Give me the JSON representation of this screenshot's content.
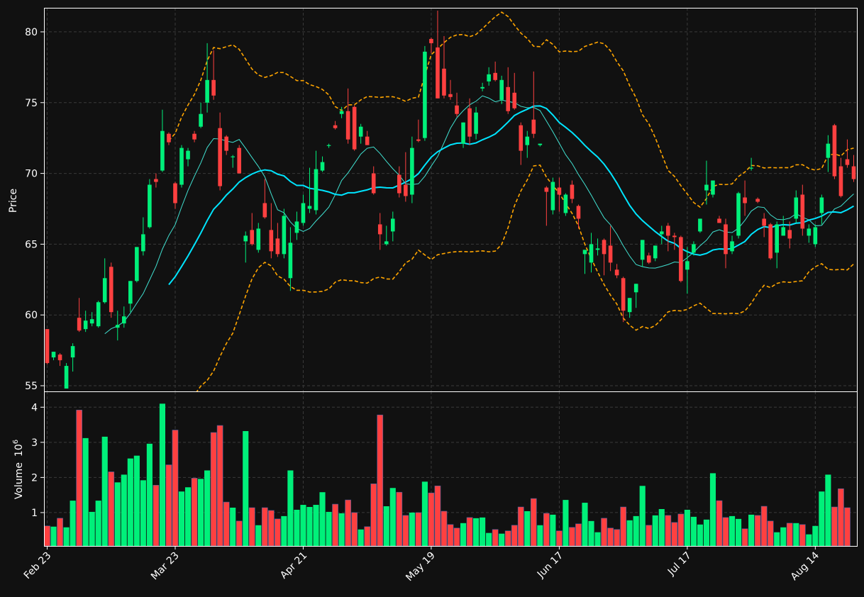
{
  "chart_data": {
    "type": "candlestick",
    "colors": {
      "background": "#111111",
      "grid": "#3a3a3a",
      "up": "#00f07a",
      "down": "#ff4040",
      "mav_short": "#40e0d0",
      "mav_long": "#00e5ff",
      "bands": "#ffa500",
      "frame": "#ffffff"
    },
    "price_panel": {
      "ylabel": "Price",
      "ylim": [
        54.6,
        81.7
      ],
      "yticks": [
        55,
        60,
        65,
        70,
        75,
        80
      ]
    },
    "volume_panel": {
      "ylabel": "Volume",
      "ylabel_exponent": "10",
      "ylabel_power": "6",
      "ylim": [
        0.05,
        4.45
      ],
      "yticks": [
        1,
        2,
        3,
        4
      ]
    },
    "x_ticks": [
      {
        "label": "Feb 23",
        "index": 0
      },
      {
        "label": "Mar 23",
        "index": 20
      },
      {
        "label": "Apr 21",
        "index": 40
      },
      {
        "label": "May 19",
        "index": 60
      },
      {
        "label": "Jun 17",
        "index": 80
      },
      {
        "label": "Jul 17",
        "index": 100
      },
      {
        "label": "Aug 14",
        "index": 120
      }
    ],
    "ohlc": [
      [
        59.0,
        59.0,
        56.5,
        56.6
      ],
      [
        57.0,
        57.4,
        56.8,
        57.4
      ],
      [
        57.2,
        57.3,
        56.4,
        56.8
      ],
      [
        54.8,
        56.6,
        54.8,
        56.4
      ],
      [
        57.0,
        58.0,
        56.0,
        57.8
      ],
      [
        59.8,
        61.2,
        58.8,
        58.9
      ],
      [
        59.0,
        60.3,
        58.8,
        59.6
      ],
      [
        59.4,
        60.2,
        59.2,
        59.7
      ],
      [
        59.2,
        61.0,
        59.1,
        60.9
      ],
      [
        60.9,
        64.0,
        60.8,
        62.6
      ],
      [
        63.4,
        63.7,
        59.8,
        60.2
      ],
      [
        59.1,
        60.3,
        58.2,
        59.3
      ],
      [
        59.4,
        60.6,
        59.1,
        59.9
      ],
      [
        60.8,
        62.4,
        60.2,
        62.4
      ],
      [
        62.4,
        64.8,
        62.3,
        64.8
      ],
      [
        64.5,
        66.9,
        64.2,
        65.7
      ],
      [
        66.2,
        69.6,
        66.1,
        69.2
      ],
      [
        69.6,
        70.0,
        69.0,
        69.4
      ],
      [
        70.2,
        74.5,
        70.1,
        73.0
      ],
      [
        72.8,
        72.9,
        72.0,
        72.2
      ],
      [
        69.3,
        69.4,
        67.5,
        67.9
      ],
      [
        69.2,
        72.0,
        69.0,
        71.8
      ],
      [
        71.0,
        71.8,
        70.5,
        71.6
      ],
      [
        72.8,
        73.0,
        72.2,
        72.4
      ],
      [
        73.3,
        75.0,
        73.2,
        74.2
      ],
      [
        75.0,
        79.2,
        74.3,
        76.6
      ],
      [
        76.6,
        78.7,
        75.2,
        75.5
      ],
      [
        73.2,
        74.3,
        68.8,
        69.1
      ],
      [
        72.6,
        72.7,
        71.3,
        71.6
      ],
      [
        71.2,
        71.3,
        70.4,
        71.2
      ],
      [
        71.8,
        72.0,
        70.0,
        70.0
      ],
      [
        65.2,
        65.9,
        63.7,
        65.6
      ],
      [
        66.0,
        67.2,
        64.9,
        65.0
      ],
      [
        64.6,
        66.5,
        64.4,
        66.1
      ],
      [
        67.9,
        69.6,
        66.8,
        66.9
      ],
      [
        66.0,
        67.9,
        64.0,
        64.5
      ],
      [
        65.4,
        66.5,
        64.1,
        64.3
      ],
      [
        64.3,
        67.5,
        64.0,
        67.0
      ],
      [
        62.6,
        66.2,
        61.7,
        65.1
      ],
      [
        65.8,
        67.3,
        65.3,
        66.6
      ],
      [
        66.5,
        68.5,
        66.3,
        67.9
      ],
      [
        67.5,
        70.4,
        67.2,
        67.7
      ],
      [
        67.4,
        71.6,
        67.1,
        70.3
      ],
      [
        70.2,
        71.2,
        70.1,
        70.8
      ],
      [
        72.0,
        72.1,
        71.8,
        72.0
      ],
      [
        73.4,
        73.7,
        73.1,
        73.2
      ],
      [
        74.2,
        74.7,
        73.9,
        74.4
      ],
      [
        74.4,
        76.0,
        72.1,
        72.4
      ],
      [
        74.7,
        74.8,
        71.6,
        71.7
      ],
      [
        72.6,
        73.5,
        72.1,
        73.3
      ],
      [
        72.6,
        73.0,
        72.0,
        72.0
      ],
      [
        70.0,
        70.5,
        68.5,
        68.6
      ],
      [
        66.4,
        67.2,
        64.6,
        65.7
      ],
      [
        65.0,
        66.3,
        64.9,
        65.2
      ],
      [
        65.9,
        67.3,
        65.2,
        66.8
      ],
      [
        69.9,
        70.5,
        68.3,
        68.6
      ],
      [
        69.2,
        71.5,
        68.0,
        68.4
      ],
      [
        68.5,
        72.6,
        67.9,
        71.8
      ],
      [
        72.4,
        73.8,
        72.2,
        72.3
      ],
      [
        72.5,
        79.0,
        72.3,
        78.6
      ],
      [
        79.5,
        79.6,
        78.5,
        79.2
      ],
      [
        78.9,
        81.5,
        75.3,
        75.3
      ],
      [
        77.4,
        79.7,
        75.3,
        75.5
      ],
      [
        75.6,
        76.6,
        75.2,
        75.4
      ],
      [
        74.8,
        75.7,
        74.0,
        74.2
      ],
      [
        72.1,
        73.6,
        71.8,
        73.6
      ],
      [
        74.6,
        75.3,
        72.0,
        72.6
      ],
      [
        72.8,
        74.7,
        72.4,
        74.3
      ],
      [
        76.0,
        76.4,
        75.8,
        76.1
      ],
      [
        76.5,
        77.5,
        76.2,
        77.0
      ],
      [
        77.1,
        77.9,
        76.5,
        76.6
      ],
      [
        75.2,
        76.9,
        74.9,
        76.6
      ],
      [
        76.1,
        77.5,
        74.2,
        74.4
      ],
      [
        75.7,
        77.1,
        74.5,
        74.6
      ],
      [
        73.4,
        73.6,
        70.6,
        71.6
      ],
      [
        72.0,
        73.0,
        71.1,
        72.6
      ],
      [
        73.8,
        77.2,
        72.5,
        72.8
      ],
      [
        72.0,
        72.1,
        71.9,
        72.1
      ],
      [
        69.0,
        69.1,
        66.3,
        68.7
      ],
      [
        67.4,
        69.7,
        67.1,
        69.4
      ],
      [
        69.0,
        69.7,
        67.3,
        68.5
      ],
      [
        67.2,
        68.6,
        67.0,
        68.5
      ],
      [
        69.2,
        69.5,
        67.9,
        68.2
      ],
      [
        67.7,
        67.8,
        66.1,
        66.8
      ],
      [
        64.3,
        64.6,
        62.9,
        64.6
      ],
      [
        63.7,
        65.8,
        63.0,
        65.0
      ],
      [
        64.6,
        65.4,
        64.2,
        64.7
      ],
      [
        65.3,
        65.4,
        62.8,
        64.3
      ],
      [
        64.9,
        66.3,
        63.1,
        63.7
      ],
      [
        63.2,
        63.6,
        62.6,
        62.8
      ],
      [
        62.6,
        62.7,
        59.5,
        60.3
      ],
      [
        60.2,
        61.2,
        59.8,
        61.2
      ],
      [
        61.6,
        62.2,
        60.5,
        62.2
      ],
      [
        63.9,
        65.3,
        63.4,
        65.3
      ],
      [
        64.2,
        64.4,
        63.6,
        63.7
      ],
      [
        64.0,
        64.9,
        63.8,
        64.9
      ],
      [
        65.7,
        66.3,
        65.0,
        65.9
      ],
      [
        66.3,
        66.5,
        64.5,
        65.6
      ],
      [
        65.6,
        65.8,
        64.6,
        65.5
      ],
      [
        65.5,
        65.6,
        62.3,
        62.4
      ],
      [
        63.2,
        64.8,
        61.5,
        63.8
      ],
      [
        64.4,
        65.2,
        64.2,
        65.0
      ],
      [
        65.9,
        66.8,
        65.8,
        66.8
      ],
      [
        68.8,
        70.9,
        67.8,
        69.2
      ],
      [
        68.5,
        69.5,
        68.3,
        69.5
      ],
      [
        66.8,
        67.0,
        66.5,
        66.5
      ],
      [
        66.4,
        66.8,
        63.3,
        64.3
      ],
      [
        64.5,
        65.6,
        64.3,
        65.2
      ],
      [
        65.6,
        68.7,
        65.4,
        68.6
      ],
      [
        68.3,
        69.5,
        67.0,
        67.9
      ],
      [
        70.4,
        71.1,
        70.2,
        70.4
      ],
      [
        68.2,
        68.3,
        67.9,
        68.0
      ],
      [
        66.8,
        67.2,
        65.5,
        66.3
      ],
      [
        66.4,
        66.5,
        63.9,
        64.0
      ],
      [
        64.4,
        66.6,
        63.3,
        66.4
      ],
      [
        65.6,
        67.0,
        65.6,
        66.2
      ],
      [
        66.0,
        66.6,
        64.7,
        65.4
      ],
      [
        66.8,
        68.8,
        66.5,
        68.3
      ],
      [
        68.5,
        69.2,
        65.6,
        66.1
      ],
      [
        65.6,
        66.4,
        65.1,
        66.1
      ],
      [
        65.0,
        66.4,
        64.8,
        66.2
      ],
      [
        67.2,
        68.5,
        66.4,
        68.3
      ],
      [
        71.1,
        72.7,
        70.1,
        72.1
      ],
      [
        73.4,
        73.5,
        69.6,
        69.8
      ],
      [
        70.5,
        71.1,
        68.3,
        68.4
      ],
      [
        71.0,
        72.4,
        70.4,
        70.6
      ],
      [
        70.5,
        71.3,
        69.4,
        69.6
      ]
    ],
    "volume": [
      0.62,
      0.6,
      0.84,
      0.58,
      1.34,
      3.92,
      3.12,
      1.02,
      1.34,
      3.16,
      2.16,
      1.86,
      2.08,
      2.54,
      2.62,
      1.92,
      2.96,
      1.78,
      4.1,
      2.36,
      3.35,
      1.6,
      1.72,
      1.98,
      1.96,
      2.2,
      3.28,
      3.48,
      1.3,
      1.14,
      0.76,
      3.32,
      1.14,
      0.64,
      1.14,
      1.06,
      0.82,
      0.9,
      2.2,
      1.08,
      1.22,
      1.16,
      1.22,
      1.58,
      1.02,
      1.24,
      0.98,
      1.36,
      1.0,
      0.52,
      0.6,
      1.82,
      3.78,
      1.18,
      1.7,
      1.58,
      0.92,
      1.0,
      1.0,
      1.88,
      1.56,
      1.76,
      1.04,
      0.66,
      0.56,
      0.7,
      0.86,
      0.84,
      0.86,
      0.42,
      0.52,
      0.4,
      0.48,
      0.64,
      1.16,
      1.04,
      1.4,
      0.64,
      0.98,
      0.94,
      0.48,
      1.36,
      0.58,
      0.68,
      1.28,
      0.76,
      0.44,
      0.84,
      0.56,
      0.52,
      1.16,
      0.78,
      0.9,
      1.76,
      0.64,
      0.92,
      1.1,
      0.92,
      0.72,
      0.96,
      1.08,
      0.88,
      0.66,
      0.8,
      2.12,
      1.34,
      0.86,
      0.9,
      0.82,
      0.54,
      0.94,
      0.92,
      1.18,
      0.76,
      0.44,
      0.58,
      0.7,
      0.7,
      0.66,
      0.38,
      0.62,
      1.6,
      2.08,
      1.16,
      1.68,
      1.14
    ]
  }
}
